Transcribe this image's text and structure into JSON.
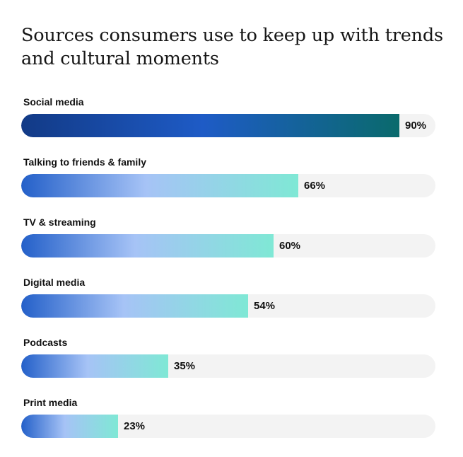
{
  "chart_data": {
    "type": "bar",
    "orientation": "horizontal",
    "title": "Sources consumers use to keep up with trends and cultural moments",
    "categories": [
      "Social media",
      "Talking to friends & family",
      "TV & streaming",
      "Digital media",
      "Podcasts",
      "Print media"
    ],
    "values": [
      90,
      66,
      60,
      54,
      35,
      23
    ],
    "value_labels": [
      "90%",
      "66%",
      "60%",
      "54%",
      "35%",
      "23%"
    ],
    "xlim": [
      0,
      100
    ],
    "grid": false,
    "legend": "none",
    "colors": {
      "highlight_gradient": [
        "#123a86",
        "#1e5bc6",
        "#0a6a6c"
      ],
      "bar_gradient": [
        "#2460c9",
        "#a6c3f6",
        "#7fe8d5"
      ],
      "track": "#f3f3f3",
      "text": "#111111"
    }
  }
}
